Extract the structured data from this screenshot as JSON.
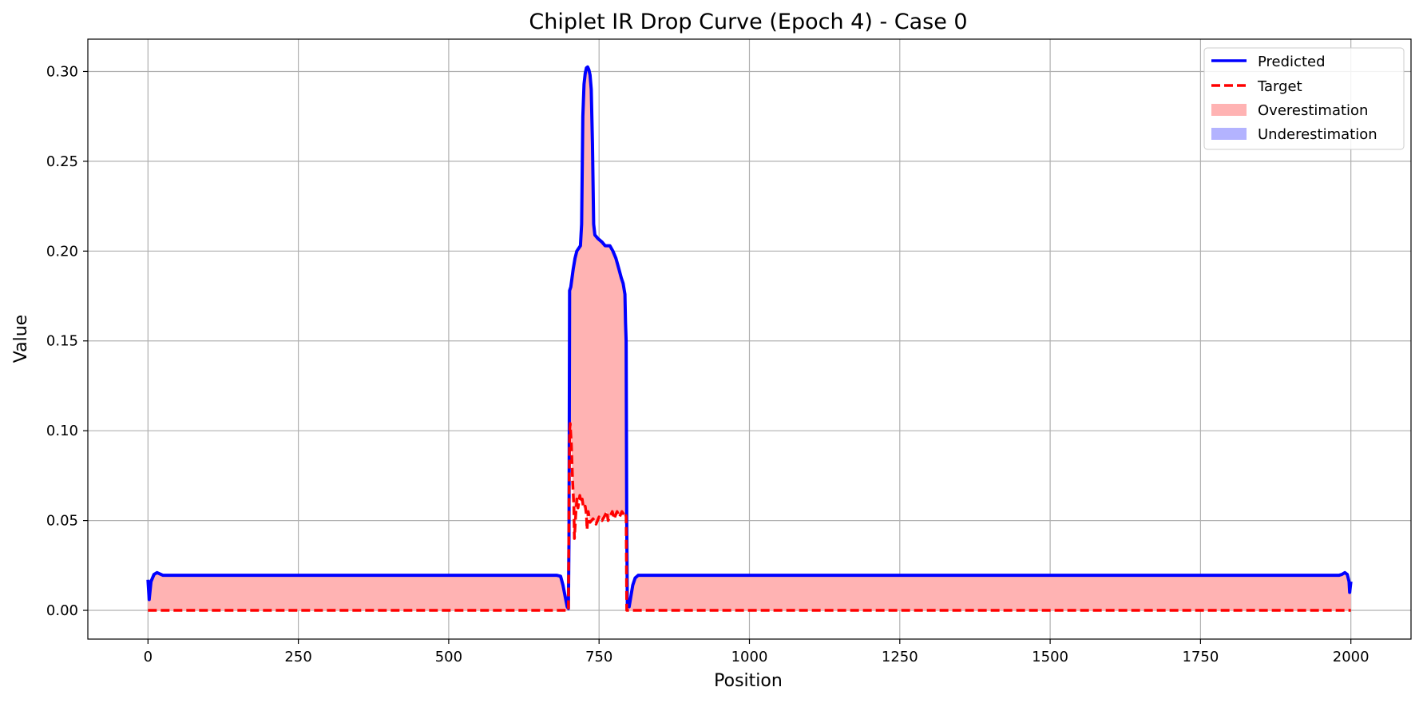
{
  "chart_data": {
    "type": "line",
    "title": "Chiplet IR Drop Curve (Epoch 4) - Case 0",
    "xlabel": "Position",
    "ylabel": "Value",
    "xlim": [
      -100,
      2100
    ],
    "ylim": [
      -0.016,
      0.318
    ],
    "xticks": [
      0,
      250,
      500,
      750,
      1000,
      1250,
      1500,
      1750,
      2000
    ],
    "yticks": [
      0.0,
      0.05,
      0.1,
      0.15,
      0.2,
      0.25,
      0.3
    ],
    "ytick_labels": [
      "0.00",
      "0.05",
      "0.10",
      "0.15",
      "0.20",
      "0.25",
      "0.30"
    ],
    "grid": true,
    "legend_position": "top-right",
    "legend": [
      "Predicted",
      "Target",
      "Overestimation",
      "Underestimation"
    ],
    "colors": {
      "predicted": "#0000ff",
      "target": "#ff0000",
      "overestimation": "#ffb3b3",
      "underestimation": "#b3b3ff"
    },
    "series": [
      {
        "name": "Predicted",
        "points": [
          [
            0,
            0.017
          ],
          [
            2,
            0.006
          ],
          [
            5,
            0.016
          ],
          [
            10,
            0.02
          ],
          [
            15,
            0.021
          ],
          [
            25,
            0.0195
          ],
          [
            100,
            0.0195
          ],
          [
            300,
            0.0195
          ],
          [
            500,
            0.0195
          ],
          [
            680,
            0.0195
          ],
          [
            686,
            0.019
          ],
          [
            690,
            0.014
          ],
          [
            694,
            0.007
          ],
          [
            697,
            0.002
          ],
          [
            699,
            0.001
          ],
          [
            700,
            0.04
          ],
          [
            701,
            0.178
          ],
          [
            703,
            0.18
          ],
          [
            705,
            0.185
          ],
          [
            707,
            0.19
          ],
          [
            710,
            0.196
          ],
          [
            713,
            0.2
          ],
          [
            715,
            0.201
          ],
          [
            717,
            0.202
          ],
          [
            719,
            0.203
          ],
          [
            721,
            0.215
          ],
          [
            723,
            0.275
          ],
          [
            725,
            0.293
          ],
          [
            727,
            0.299
          ],
          [
            729,
            0.302
          ],
          [
            731,
            0.3025
          ],
          [
            733,
            0.301
          ],
          [
            735,
            0.298
          ],
          [
            737,
            0.29
          ],
          [
            739,
            0.26
          ],
          [
            741,
            0.215
          ],
          [
            743,
            0.209
          ],
          [
            748,
            0.207
          ],
          [
            755,
            0.205
          ],
          [
            760,
            0.203
          ],
          [
            768,
            0.203
          ],
          [
            773,
            0.2
          ],
          [
            778,
            0.196
          ],
          [
            783,
            0.19
          ],
          [
            787,
            0.185
          ],
          [
            790,
            0.182
          ],
          [
            793,
            0.176
          ],
          [
            794,
            0.16
          ],
          [
            795,
            0.15
          ],
          [
            796,
            0.05
          ],
          [
            797,
            0.003
          ],
          [
            800,
            0.002
          ],
          [
            803,
            0.008
          ],
          [
            806,
            0.014
          ],
          [
            810,
            0.018
          ],
          [
            815,
            0.0195
          ],
          [
            900,
            0.0195
          ],
          [
            1200,
            0.0195
          ],
          [
            1500,
            0.0195
          ],
          [
            1800,
            0.0195
          ],
          [
            1980,
            0.0195
          ],
          [
            1985,
            0.02
          ],
          [
            1990,
            0.021
          ],
          [
            1994,
            0.02
          ],
          [
            1997,
            0.016
          ],
          [
            1998,
            0.01
          ],
          [
            2000,
            0.016
          ]
        ]
      },
      {
        "name": "Target",
        "points": [
          [
            0,
            0
          ],
          [
            698,
            0
          ],
          [
            699,
            0
          ],
          [
            700,
            0.06
          ],
          [
            701,
            0.1
          ],
          [
            702,
            0.104
          ],
          [
            704,
            0.092
          ],
          [
            706,
            0.072
          ],
          [
            708,
            0.058
          ],
          [
            709,
            0.04
          ],
          [
            711,
            0.052
          ],
          [
            713,
            0.062
          ],
          [
            715,
            0.057
          ],
          [
            718,
            0.064
          ],
          [
            720,
            0.06
          ],
          [
            722,
            0.062
          ],
          [
            724,
            0.057
          ],
          [
            727,
            0.058
          ],
          [
            729,
            0.053
          ],
          [
            730,
            0.045
          ],
          [
            732,
            0.055
          ],
          [
            735,
            0.049
          ],
          [
            740,
            0.051
          ],
          [
            745,
            0.048
          ],
          [
            750,
            0.052
          ],
          [
            755,
            0.05
          ],
          [
            760,
            0.053
          ],
          [
            763,
            0.055
          ],
          [
            765,
            0.05
          ],
          [
            768,
            0.052
          ],
          [
            772,
            0.055
          ],
          [
            775,
            0.051
          ],
          [
            780,
            0.055
          ],
          [
            784,
            0.052
          ],
          [
            788,
            0.055
          ],
          [
            792,
            0.053
          ],
          [
            794,
            0.054
          ],
          [
            795,
            0.052
          ],
          [
            796,
            0.0
          ],
          [
            2000,
            0.0
          ]
        ]
      }
    ]
  }
}
